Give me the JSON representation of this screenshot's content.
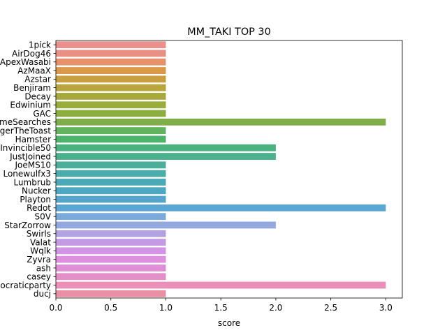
{
  "chart_data": {
    "type": "bar",
    "orientation": "horizontal",
    "title": "MM_TAKI TOP 30",
    "xlabel": "score",
    "ylabel": "",
    "xlim": [
      0,
      3.15
    ],
    "xticks": [
      0.0,
      0.5,
      1.0,
      1.5,
      2.0,
      2.5,
      3.0
    ],
    "xtick_labels": [
      "0.0",
      "0.5",
      "1.0",
      "1.5",
      "2.0",
      "2.5",
      "3.0"
    ],
    "grid": false,
    "legend": "none",
    "categories": [
      "1pick",
      "AirDog46",
      "ApexWasabi",
      "AzMaaX",
      "Azstar",
      "Benjiram",
      "Decay",
      "Edwinium",
      "GAC",
      "GameSearches",
      "GingerTheToast",
      "Hamster",
      "Invincible50",
      "JustJoined",
      "JoeMS10",
      "Lonewulfx3",
      "Lumbrub",
      "Nucker",
      "Playton",
      "Redot",
      "S0V",
      "StarZorrow",
      "Swirls",
      "Valat",
      "Wqlk",
      "Zyvra",
      "ash",
      "casey",
      "democraticparty",
      "ducj"
    ],
    "values": [
      1,
      1,
      1,
      1,
      1,
      1,
      1,
      1,
      1,
      3,
      1,
      1,
      2,
      2,
      1,
      1,
      1,
      1,
      1,
      3,
      1,
      2,
      1,
      1,
      1,
      1,
      1,
      1,
      3,
      1
    ],
    "colors": [
      "#ea8f8c",
      "#ea8f84",
      "#e8926b",
      "#dc9849",
      "#c8a03f",
      "#b8a53c",
      "#a8a93b",
      "#99ad3b",
      "#8aaf3c",
      "#7fae49",
      "#5fb45c",
      "#4cb36a",
      "#4ab27f",
      "#4bb08d",
      "#4bad9a",
      "#4aacab",
      "#4baab8",
      "#4ca7c0",
      "#55a4cb",
      "#5aa7d6",
      "#7aaadc",
      "#93a8df",
      "#b2a2e2",
      "#c49ae5",
      "#d393e6",
      "#de8fe0",
      "#e08ed6",
      "#e58fc9",
      "#ea8fb7",
      "#ea8fa4"
    ]
  }
}
